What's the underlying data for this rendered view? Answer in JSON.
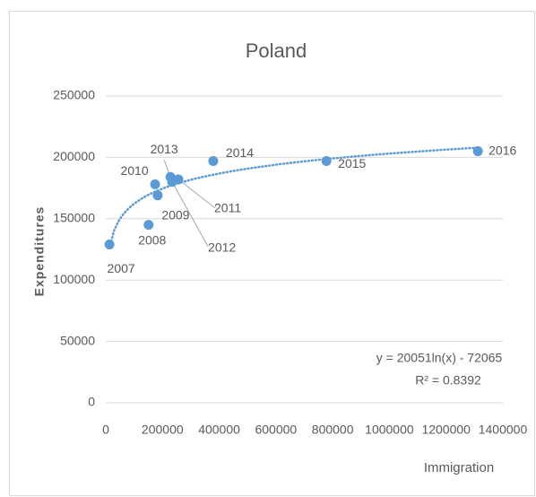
{
  "chart_data": {
    "type": "scatter",
    "title": "Poland",
    "x_label": "Immigration",
    "y_label": "Expenditures",
    "labels": [
      "2007",
      "2008",
      "2009",
      "2010",
      "2011",
      "2012",
      "2013",
      "2014",
      "2015",
      "2016"
    ],
    "x": [
      13000,
      151000,
      183000,
      174000,
      256000,
      234000,
      228000,
      379000,
      778000,
      1312000
    ],
    "values": [
      129000,
      145000,
      169000,
      178000,
      182000,
      180000,
      184000,
      197000,
      197000,
      205000
    ],
    "color": "#5b9bd5",
    "trendline": "logarithmic",
    "annotations": [
      "y = 20051ln(x) - 72065",
      "R² = 0.8392"
    ],
    "xlim": [
      0,
      1400000
    ],
    "xticks": [
      0,
      200000,
      400000,
      600000,
      800000,
      1000000,
      1200000,
      1400000
    ],
    "ylim": [
      0,
      250000
    ],
    "yticks": [
      0,
      50000,
      100000,
      150000,
      200000,
      250000
    ],
    "grid": true
  }
}
